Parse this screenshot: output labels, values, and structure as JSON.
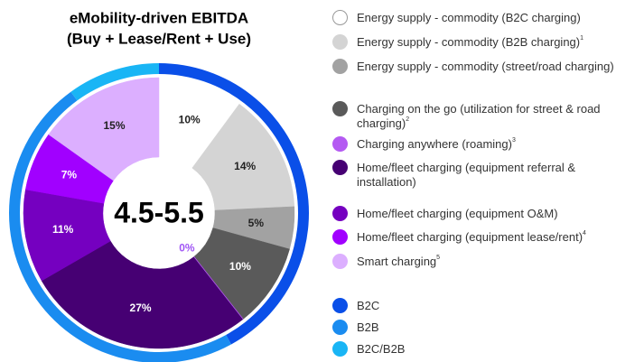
{
  "chart_data": {
    "type": "donut",
    "title": [
      "eMobility-driven EBITDA",
      "(Buy + Lease/Rent + Use)"
    ],
    "center_label": "4.5-5.5",
    "categories": [
      "Energy supply - commodity (B2C charging)",
      "Energy supply - commodity (B2B charging)",
      "Energy supply - commodity (street/road charging)",
      "Charging on the go (utilization for street & road charging)",
      "Charging anywhere (roaming)",
      "Home/fleet charging (equipment referral & installation)",
      "Home/fleet charging (equipment O&M)",
      "Home/fleet charging (equipment lease/rent)",
      "Smart charging"
    ],
    "notes": [
      null,
      "1",
      null,
      "2",
      "3",
      null,
      null,
      "4",
      "5"
    ],
    "values": [
      10,
      14,
      5,
      10,
      0,
      27,
      11,
      7,
      15
    ],
    "value_labels": [
      "10%",
      "14%",
      "5%",
      "10%",
      "0%",
      "27%",
      "11%",
      "7%",
      "15%"
    ],
    "colors": [
      "#ffffff",
      "#d4d4d4",
      "#a2a2a2",
      "#5a5a5a",
      "#b45af2",
      "#460073",
      "#7500c0",
      "#a100ff",
      "#dcafff"
    ],
    "ring": {
      "categories": [
        "B2C",
        "B2B",
        "B2C/B2B"
      ],
      "values": [
        42,
        48,
        10
      ],
      "colors": [
        "#0a4fe8",
        "#1a8cf0",
        "#19b5f5"
      ]
    }
  }
}
